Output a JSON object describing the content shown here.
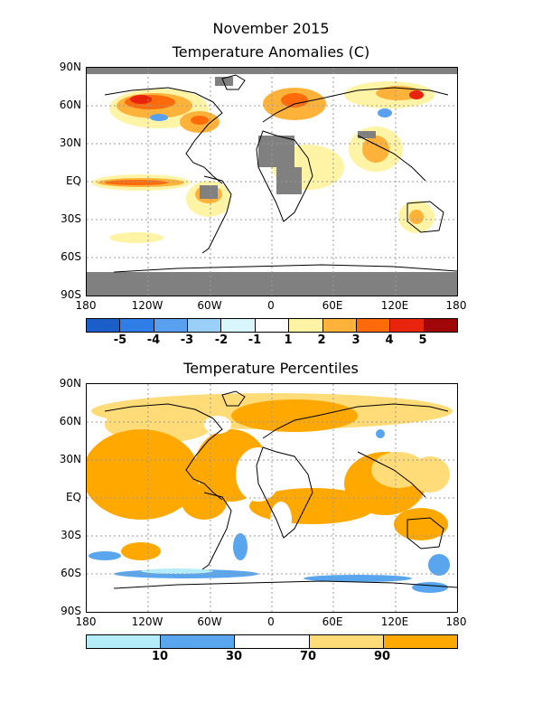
{
  "header": {
    "date": "November 2015",
    "map1_title": "Temperature Anomalies (C)",
    "map2_title": "Temperature Percentiles"
  },
  "axes": {
    "lat_labels": [
      "90N",
      "60N",
      "30N",
      "EQ",
      "30S",
      "60S",
      "90S"
    ],
    "lon_labels": [
      "180",
      "120W",
      "60W",
      "0",
      "60E",
      "120E",
      "180"
    ]
  },
  "anomaly_legend": {
    "labels": [
      "-5",
      "-4",
      "-3",
      "-2",
      "-1",
      "1",
      "2",
      "3",
      "4",
      "5"
    ],
    "colors": [
      "#1a5fc9",
      "#2f7ee8",
      "#5aa0f0",
      "#9acff8",
      "#d8f6fb",
      "#ffffff",
      "#fff3a6",
      "#ffb23a",
      "#ff6a0a",
      "#e8240c",
      "#a00606"
    ]
  },
  "percentile_legend": {
    "labels": [
      "10",
      "30",
      "70",
      "90"
    ],
    "colors": [
      "#b4ecf8",
      "#5aa6ee",
      "#ffffff",
      "#ffdc78",
      "#ffa800"
    ]
  },
  "colors": {
    "missing": "#808080",
    "land_outline": "#000000",
    "grid": "#999999"
  }
}
